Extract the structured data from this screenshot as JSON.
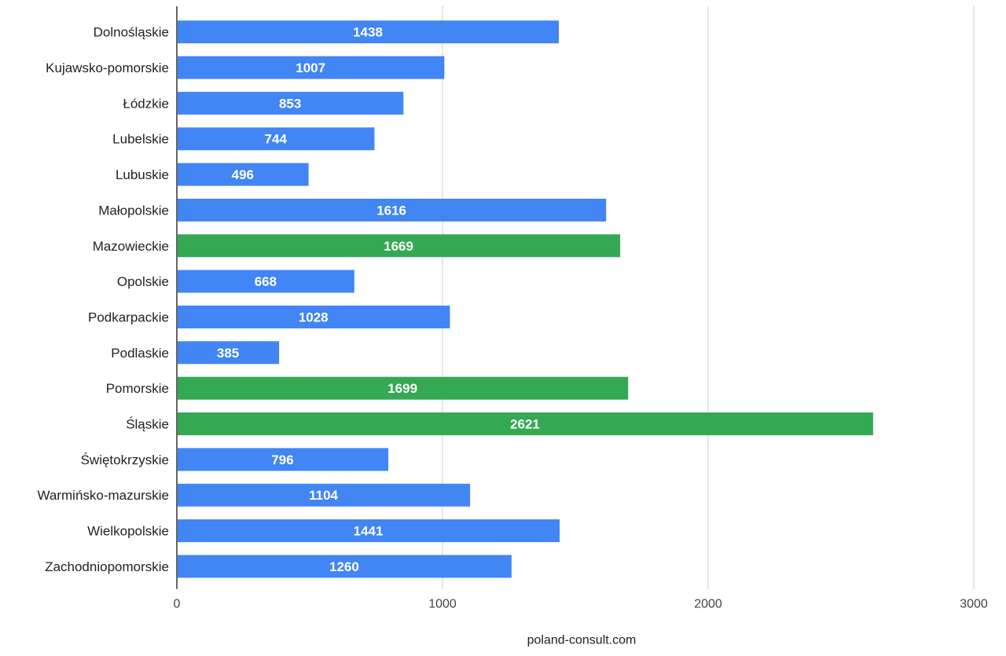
{
  "chart_data": {
    "type": "bar",
    "orientation": "horizontal",
    "categories": [
      "Dolnośląskie",
      "Kujawsko-pomorskie",
      "Łódzkie",
      "Lubelskie",
      "Lubuskie",
      "Małopolskie",
      "Mazowieckie",
      "Opolskie",
      "Podkarpackie",
      "Podlaskie",
      "Pomorskie",
      "Śląskie",
      "Świętokrzyskie",
      "Warmińsko-mazurskie",
      "Wielkopolskie",
      "Zachodniopomorskie"
    ],
    "values": [
      1438,
      1007,
      853,
      744,
      496,
      1616,
      1669,
      668,
      1028,
      385,
      1699,
      2621,
      796,
      1104,
      1441,
      1260
    ],
    "highlight": [
      false,
      false,
      false,
      false,
      false,
      false,
      true,
      false,
      false,
      false,
      true,
      true,
      false,
      false,
      false,
      false
    ],
    "colors": {
      "default": "#4285f4",
      "highlight": "#34a853",
      "grid": "#cccccc",
      "axis": "#333333"
    },
    "xlim": [
      0,
      3000
    ],
    "x_ticks": [
      0,
      1000,
      2000,
      3000
    ],
    "xlabel": "poland-consult.com",
    "grid": true,
    "data_labels": true
  }
}
